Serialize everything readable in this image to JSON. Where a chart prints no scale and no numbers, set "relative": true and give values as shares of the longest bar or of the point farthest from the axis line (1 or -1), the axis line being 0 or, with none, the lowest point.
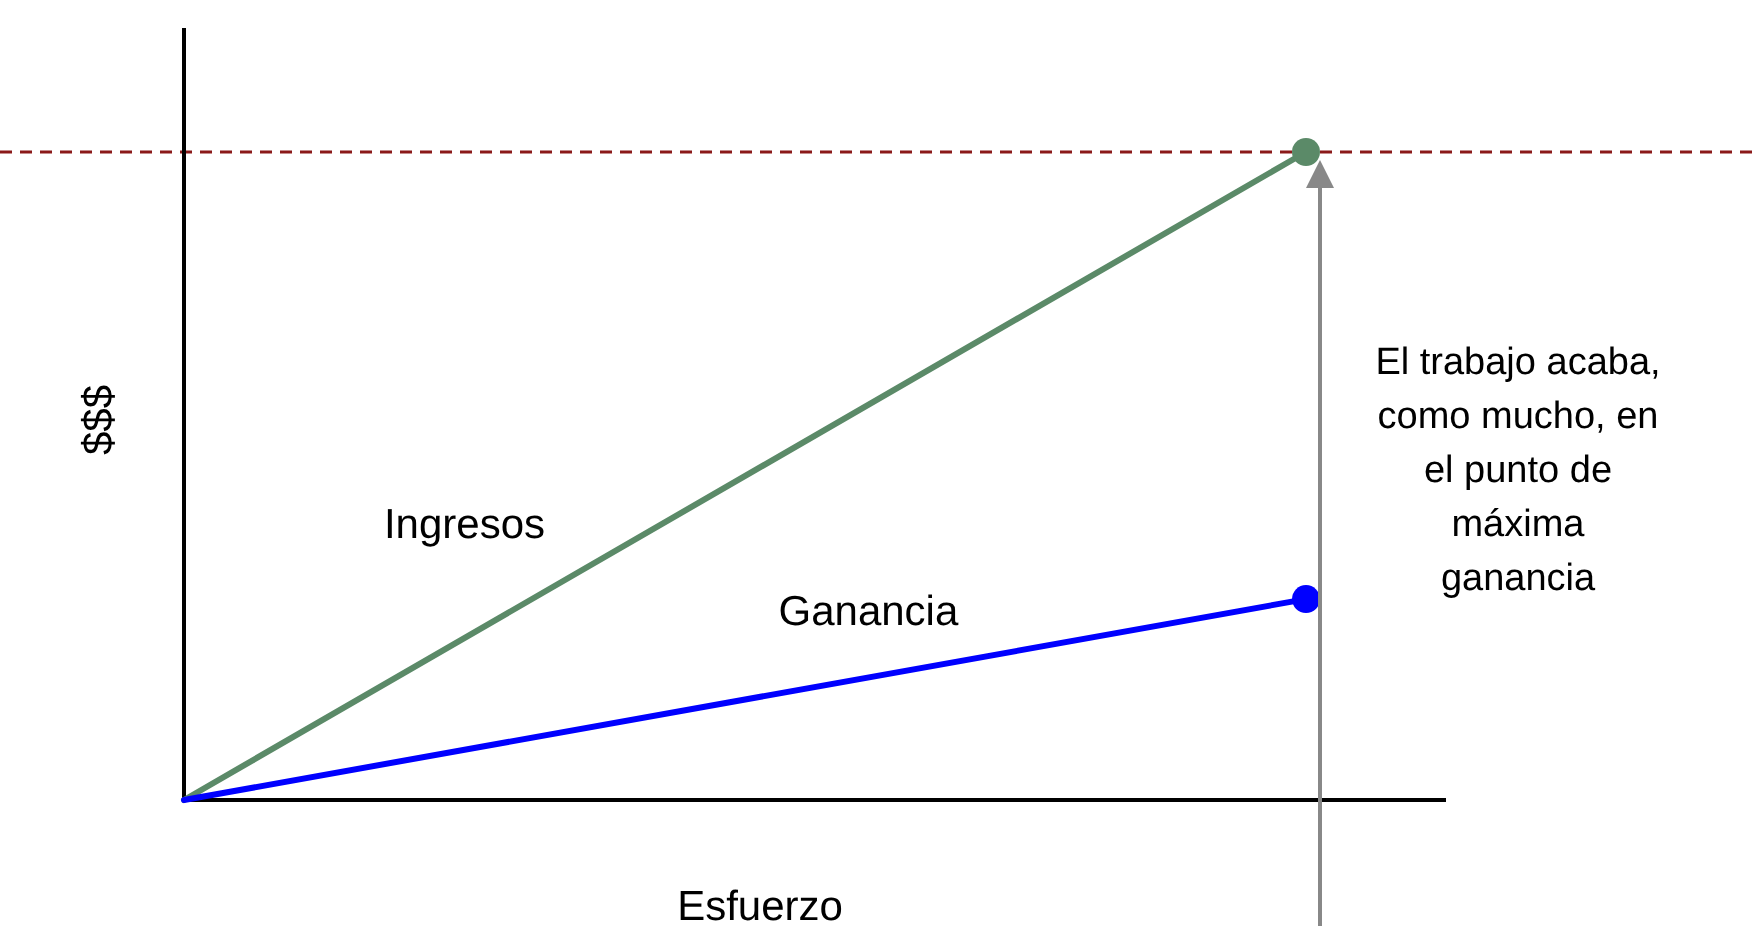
{
  "chart_data": {
    "type": "line",
    "relative": true,
    "xlabel": "Esfuerzo",
    "ylabel": "$$$",
    "categories": [
      null,
      null
    ],
    "marker": "circle",
    "line_style": "solid",
    "series": [
      {
        "name": "Ingresos",
        "color": "#5b8a68",
        "values": [
          0,
          1
        ]
      },
      {
        "name": "Ganancia",
        "color": "#0000ff",
        "values": [
          0,
          0.31
        ]
      }
    ],
    "ref_lines": [
      {
        "axis": "y",
        "value": 1,
        "color": "#8b1a1a",
        "line_style": "dashed"
      }
    ],
    "annotations": [
      "El trabajo acaba,\ncomo mucho, en\nel punto de\nmáxima\nganancia"
    ]
  }
}
